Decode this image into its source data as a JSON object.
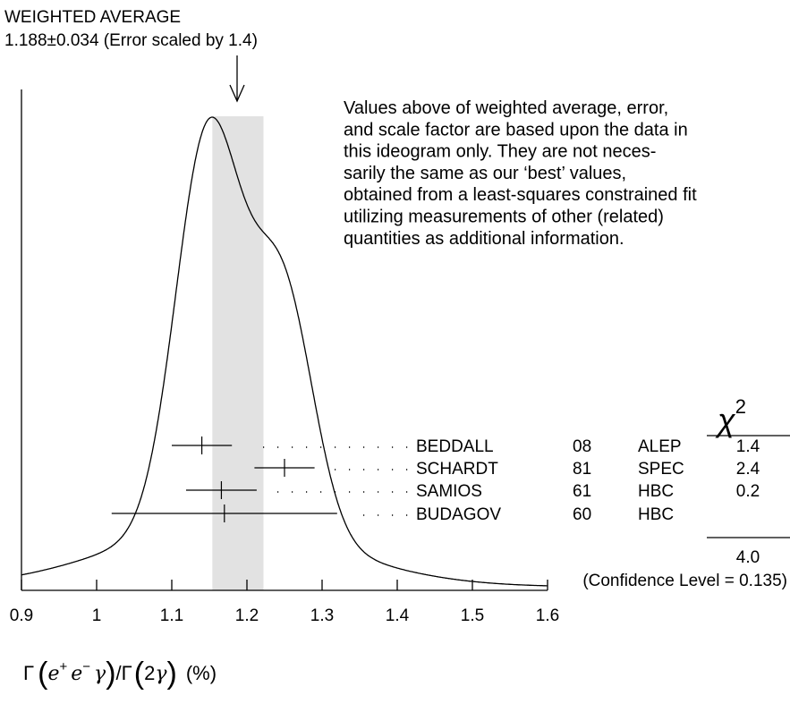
{
  "chart_data": {
    "type": "ideogram",
    "header": {
      "title": "WEIGHTED AVERAGE",
      "value_line": "1.188±0.034 (Error scaled by 1.4)"
    },
    "weighted_average": {
      "value": 1.188,
      "error": 0.034,
      "scale_factor": 1.4
    },
    "note_lines": [
      "Values above of weighted average, error,",
      "and scale factor are based upon the data in",
      "this ideogram only.  They are not neces-",
      "sarily the same as our ‘best’ values,",
      "obtained from a least-squares constrained fit",
      "utilizing measurements of other (related)",
      "quantities as additional information."
    ],
    "xlim": [
      0.9,
      1.6
    ],
    "xticks": [
      0.9,
      1,
      1.1,
      1.2,
      1.3,
      1.4,
      1.5,
      1.6
    ],
    "xtick_labels": [
      "0.9",
      "1",
      "1.1",
      "1.2",
      "1.3",
      "1.4",
      "1.5",
      "1.6"
    ],
    "xlabel": "Γ(e⁺e⁻γ)/Γ(2γ) (%)",
    "chi2_header": "χ²",
    "measurements": [
      {
        "author": "BEDDALL",
        "year": "08",
        "tech": "ALEP",
        "value": 1.14,
        "error": 0.04,
        "chi2": "1.4"
      },
      {
        "author": "SCHARDT",
        "year": "81",
        "tech": "SPEC",
        "value": 1.25,
        "error": 0.04,
        "chi2": "2.4"
      },
      {
        "author": "SAMIOS",
        "year": "61",
        "tech": "HBC",
        "value": 1.166,
        "error": 0.047,
        "chi2": "0.2"
      },
      {
        "author": "BUDAGOV",
        "year": "60",
        "tech": "HBC",
        "value": 1.17,
        "error": 0.15,
        "chi2": ""
      }
    ],
    "chi2_total": "4.0",
    "confidence_level": "(Confidence Level = 0.135)"
  }
}
